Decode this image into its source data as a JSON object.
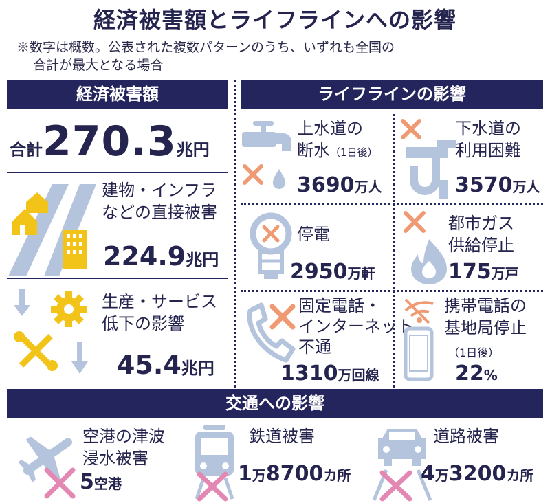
{
  "title": "経済被害額とライフラインへの影響",
  "note": {
    "line1": "※数字は概数。公表された複数パターンのうち、いずれも全国の",
    "line2": "合計が最大となる場合"
  },
  "economic": {
    "header": "経済被害額",
    "total": {
      "label": "合計",
      "value": "270.3",
      "unit": "兆円"
    },
    "direct": {
      "line1": "建物・インフラ",
      "line2": "などの直接被害",
      "value": "224.9",
      "unit": "兆円"
    },
    "production": {
      "line1": "生産・サービス",
      "line2": "低下の影響",
      "value": "45.4",
      "unit": "兆円"
    }
  },
  "lifeline": {
    "header": "ライフラインの影響",
    "water": {
      "line1": "上水道の",
      "line2": "断水",
      "sub": "（1日後）",
      "value": "3690",
      "unit": "万人"
    },
    "sewer": {
      "line1": "下水道の",
      "line2": "利用困難",
      "value": "3570",
      "unit": "万人"
    },
    "power": {
      "line1": "停電",
      "value": "2950",
      "unit": "万軒"
    },
    "gas": {
      "line1": "都市ガス",
      "line2": "供給停止",
      "value": "175",
      "unit": "万戸"
    },
    "landline": {
      "line1": "固定電話・",
      "line2": "インターネット",
      "line3": "不通",
      "value": "1310",
      "unit": "万回線"
    },
    "mobile": {
      "line1": "携帯電話の",
      "line2": "基地局停止",
      "sub": "（1日後）",
      "value": "22",
      "unit": "%"
    }
  },
  "transport": {
    "header": "交通への影響",
    "airport": {
      "line1": "空港の津波",
      "line2": "浸水被害",
      "value": "5",
      "unit": "空港"
    },
    "rail": {
      "line1": "鉄道被害",
      "value_a": "1",
      "unit_a": "万",
      "value_b": "8700",
      "unit_b": "カ所"
    },
    "road": {
      "line1": "道路被害",
      "value_a": "4",
      "unit_a": "万",
      "value_b": "3200",
      "unit_b": "カ所"
    }
  },
  "colors": {
    "navy": "#25255e",
    "icon_blue": "#b3c4dc",
    "yellow": "#f2c318",
    "orange": "#ef9a72",
    "pink": "#e388b3"
  }
}
